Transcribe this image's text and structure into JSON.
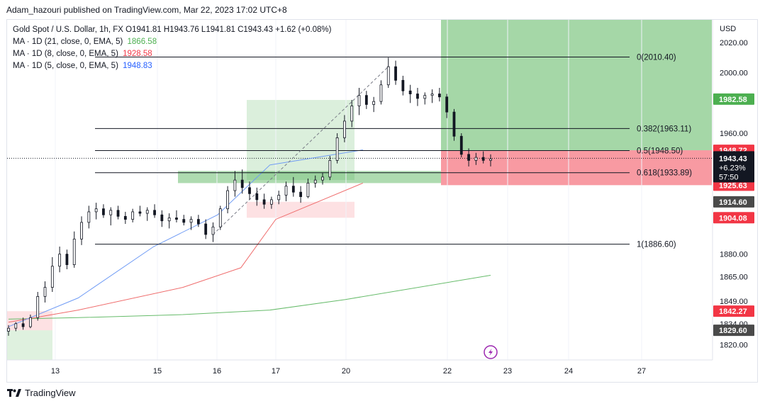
{
  "header": {
    "publisher": "Adam_hazouri published on TradingView.com, Mar 22, 2023 17:02 UTC+8"
  },
  "legend": {
    "symbol_line": "Gold Spot / U.S. Dollar, 1h, FX O1941.81 H1943.76 L1941.81 C1943.43 +1.62 (+0.08%)",
    "ma_lines": [
      {
        "label": "MA · 1D (21, close, 0, EMA, 5)",
        "value": "1866.58",
        "color": "#4caf50"
      },
      {
        "label": "MA · 1D (8, close, 0, EMA, 5)",
        "value": "1928.58",
        "color": "#f23645"
      },
      {
        "label": "MA · 1D (5, close, 0, EMA, 5)",
        "value": "1948.83",
        "color": "#2962ff"
      }
    ]
  },
  "footer": {
    "brand": "TradingView"
  },
  "colors": {
    "up": "#089981",
    "candle": "#131722",
    "ma21": "#66bb6a",
    "ma8": "#ef6b6b",
    "ma5": "#6f9bf5",
    "profit": "#4caf50",
    "loss": "#f23645"
  },
  "chart_data": {
    "type": "candlestick",
    "currency": "USD",
    "ylim": [
      1810,
      2035
    ],
    "y_ticks": [
      "2020.00",
      "2000.00",
      "1960.00",
      "1880.00",
      "1865.00",
      "1849.00",
      "1834.00",
      "1820.00"
    ],
    "x_ticks": [
      "13",
      "15",
      "16",
      "17",
      "20",
      "22",
      "23",
      "24",
      "27"
    ],
    "fibonacci": [
      {
        "label": "0(2010.40)",
        "value": 2010.4
      },
      {
        "label": "0.382(1963.11)",
        "value": 1963.11
      },
      {
        "label": "0.5(1948.50)",
        "value": 1948.5
      },
      {
        "label": "0.618(1933.89)",
        "value": 1933.89
      },
      {
        "label": "1(1886.60)",
        "value": 1886.6
      }
    ],
    "price_badges": [
      {
        "text": "1982.58",
        "value": 1982.58,
        "bg": "#4caf50",
        "fg": "#ffffff"
      },
      {
        "text": "1948.72",
        "value": 1948.72,
        "bg": "#f23645",
        "fg": "#ffffff"
      },
      {
        "text": "1925.63",
        "value": 1925.63,
        "bg": "#f23645",
        "fg": "#ffffff"
      },
      {
        "text": "1914.60",
        "value": 1914.6,
        "bg": "#4a4a4a",
        "fg": "#ffffff"
      },
      {
        "text": "1904.08",
        "value": 1904.08,
        "bg": "#f23645",
        "fg": "#ffffff"
      },
      {
        "text": "1842.27",
        "value": 1842.27,
        "bg": "#f23645",
        "fg": "#ffffff"
      },
      {
        "text": "1829.60",
        "value": 1829.6,
        "bg": "#4a4a4a",
        "fg": "#ffffff"
      }
    ],
    "current_price": {
      "price": "1943.43",
      "change": "+6.23%",
      "countdown": "57:50",
      "value": 1943.43
    },
    "moving_averages": [
      {
        "name": "EMA 21 (1D)",
        "points": [
          [
            0,
            1837
          ],
          [
            0.12,
            1838
          ],
          [
            0.3,
            1840
          ],
          [
            0.45,
            1843
          ],
          [
            0.58,
            1850
          ],
          [
            0.83,
            1866
          ]
        ]
      },
      {
        "name": "EMA 8 (1D)",
        "points": [
          [
            0,
            1835
          ],
          [
            0.12,
            1843
          ],
          [
            0.3,
            1858
          ],
          [
            0.4,
            1871
          ],
          [
            0.46,
            1903
          ],
          [
            0.61,
            1927
          ]
        ]
      },
      {
        "name": "EMA 5 (1D)",
        "points": [
          [
            0,
            1832
          ],
          [
            0.12,
            1851
          ],
          [
            0.25,
            1885
          ],
          [
            0.36,
            1906
          ],
          [
            0.45,
            1939
          ],
          [
            0.61,
            1949
          ]
        ]
      }
    ],
    "candles": [
      [
        1829,
        1833,
        1826,
        1831
      ],
      [
        1831,
        1835,
        1829,
        1834
      ],
      [
        1834,
        1838,
        1830,
        1832
      ],
      [
        1832,
        1840,
        1831,
        1838
      ],
      [
        1838,
        1855,
        1836,
        1852
      ],
      [
        1852,
        1862,
        1848,
        1858
      ],
      [
        1858,
        1878,
        1855,
        1872
      ],
      [
        1872,
        1885,
        1868,
        1880
      ],
      [
        1880,
        1883,
        1870,
        1873
      ],
      [
        1873,
        1895,
        1871,
        1890
      ],
      [
        1890,
        1905,
        1886,
        1901
      ],
      [
        1901,
        1912,
        1897,
        1908
      ],
      [
        1908,
        1914,
        1903,
        1910
      ],
      [
        1910,
        1913,
        1904,
        1906
      ],
      [
        1906,
        1911,
        1899,
        1909
      ],
      [
        1909,
        1912,
        1903,
        1905
      ],
      [
        1905,
        1908,
        1900,
        1903
      ],
      [
        1903,
        1910,
        1901,
        1908
      ],
      [
        1908,
        1912,
        1905,
        1907
      ],
      [
        1907,
        1911,
        1902,
        1909
      ],
      [
        1909,
        1913,
        1904,
        1906
      ],
      [
        1906,
        1909,
        1898,
        1902
      ],
      [
        1902,
        1907,
        1897,
        1904
      ],
      [
        1904,
        1909,
        1901,
        1903
      ],
      [
        1903,
        1906,
        1899,
        1901
      ],
      [
        1901,
        1905,
        1896,
        1903
      ],
      [
        1903,
        1906,
        1898,
        1900
      ],
      [
        1900,
        1903,
        1890,
        1893
      ],
      [
        1893,
        1901,
        1888,
        1898
      ],
      [
        1898,
        1912,
        1896,
        1910
      ],
      [
        1910,
        1925,
        1907,
        1922
      ],
      [
        1922,
        1935,
        1918,
        1929
      ],
      [
        1929,
        1936,
        1920,
        1924
      ],
      [
        1924,
        1928,
        1916,
        1920
      ],
      [
        1920,
        1924,
        1912,
        1916
      ],
      [
        1916,
        1920,
        1910,
        1913
      ],
      [
        1913,
        1918,
        1910,
        1916
      ],
      [
        1916,
        1922,
        1913,
        1919
      ],
      [
        1919,
        1928,
        1915,
        1925
      ],
      [
        1925,
        1931,
        1918,
        1921
      ],
      [
        1921,
        1925,
        1914,
        1918
      ],
      [
        1918,
        1930,
        1917,
        1927
      ],
      [
        1927,
        1932,
        1924,
        1929
      ],
      [
        1929,
        1934,
        1926,
        1931
      ],
      [
        1931,
        1945,
        1929,
        1942
      ],
      [
        1942,
        1960,
        1940,
        1957
      ],
      [
        1957,
        1972,
        1954,
        1968
      ],
      [
        1968,
        1982,
        1964,
        1978
      ],
      [
        1978,
        1990,
        1972,
        1985
      ],
      [
        1985,
        1988,
        1976,
        1979
      ],
      [
        1979,
        1984,
        1974,
        1981
      ],
      [
        1981,
        1995,
        1979,
        1992
      ],
      [
        1992,
        2010,
        1990,
        2004
      ],
      [
        2004,
        2008,
        1992,
        1995
      ],
      [
        1995,
        1998,
        1985,
        1988
      ],
      [
        1988,
        1992,
        1980,
        1986
      ],
      [
        1986,
        1990,
        1978,
        1983
      ],
      [
        1983,
        1987,
        1979,
        1985
      ],
      [
        1985,
        1989,
        1980,
        1986
      ],
      [
        1986,
        1990,
        1981,
        1984
      ],
      [
        1984,
        1986,
        1970,
        1974
      ],
      [
        1974,
        1976,
        1955,
        1958
      ],
      [
        1958,
        1960,
        1944,
        1946
      ],
      [
        1946,
        1950,
        1938,
        1942
      ],
      [
        1942,
        1947,
        1939,
        1944
      ],
      [
        1944,
        1948,
        1940,
        1942
      ],
      [
        1942,
        1946,
        1938,
        1943
      ]
    ]
  }
}
